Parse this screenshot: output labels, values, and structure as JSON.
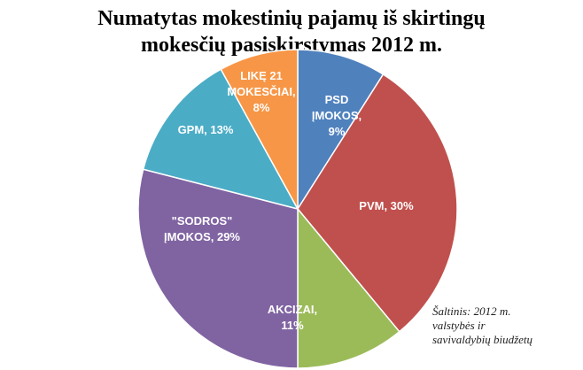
{
  "chart_data": {
    "type": "pie",
    "title_lines": [
      "Numatytas mokestinių pajamų iš skirtingų",
      "mokesčių pasiskirstymas 2012 m."
    ],
    "slices": [
      {
        "label_lines": [
          "PSD",
          "ĮMOKOS,",
          "9%"
        ],
        "value": 9,
        "color": "#4F81BD"
      },
      {
        "label_lines": [
          "PVM, 30%"
        ],
        "value": 30,
        "color": "#C0504D"
      },
      {
        "label_lines": [
          "AKCIZAI,",
          "11%"
        ],
        "value": 11,
        "color": "#9BBB59"
      },
      {
        "label_lines": [
          "\"SODROS\"",
          "ĮMOKOS, 29%"
        ],
        "value": 29,
        "color": "#8064A2"
      },
      {
        "label_lines": [
          "GPM, 13%"
        ],
        "value": 13,
        "color": "#4BACC6"
      },
      {
        "label_lines": [
          "LIKĘ 21",
          "MOKESČIAI,",
          "8%"
        ],
        "value": 8,
        "color": "#F79646"
      }
    ],
    "legend": "none",
    "source_lines": [
      "Šaltinis: 2012 m.",
      "valstybės ir",
      "savivaldybių biudžetų"
    ]
  }
}
